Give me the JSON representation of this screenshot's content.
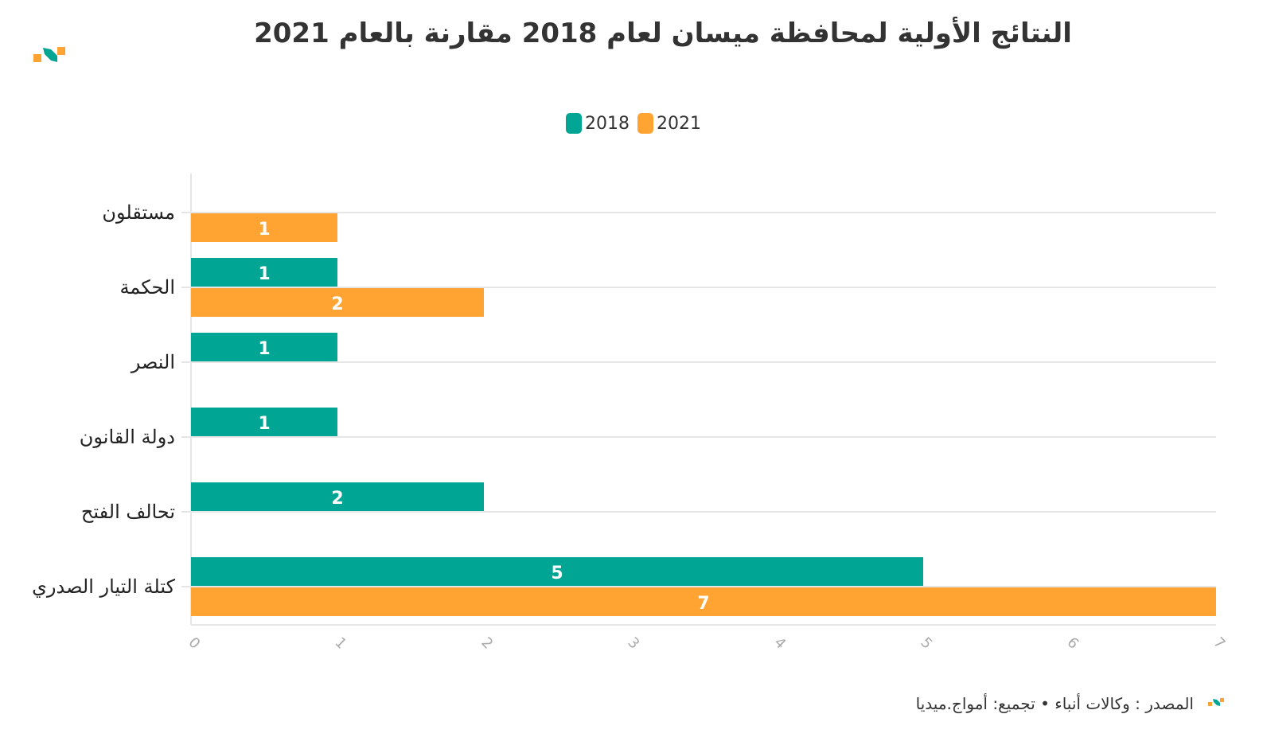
{
  "title": "النتائج الأولية لمحافظة ميسان لعام 2018 مقارنة بالعام 2021",
  "footer": "المصدر : وكالات أنباء • تجميع: أمواج.ميديا",
  "colors": {
    "2018": "#00a693",
    "2021": "#ffa333"
  },
  "chart_data": {
    "type": "bar",
    "orientation": "horizontal",
    "categories": [
      "مستقلون",
      "الحكمة",
      "النصر",
      "دولة القانون",
      "تحالف الفتح",
      "كتلة التيار الصدري"
    ],
    "series": [
      {
        "name": "2018",
        "values": [
          null,
          1,
          1,
          1,
          2,
          5
        ]
      },
      {
        "name": "2021",
        "values": [
          1,
          2,
          null,
          null,
          null,
          7
        ]
      }
    ],
    "xlim": [
      0,
      7
    ],
    "xticks": [
      "0",
      "1",
      "2",
      "3",
      "4",
      "5",
      "6",
      "7"
    ],
    "grid": true,
    "legend": "top-center",
    "data_labels": true
  }
}
